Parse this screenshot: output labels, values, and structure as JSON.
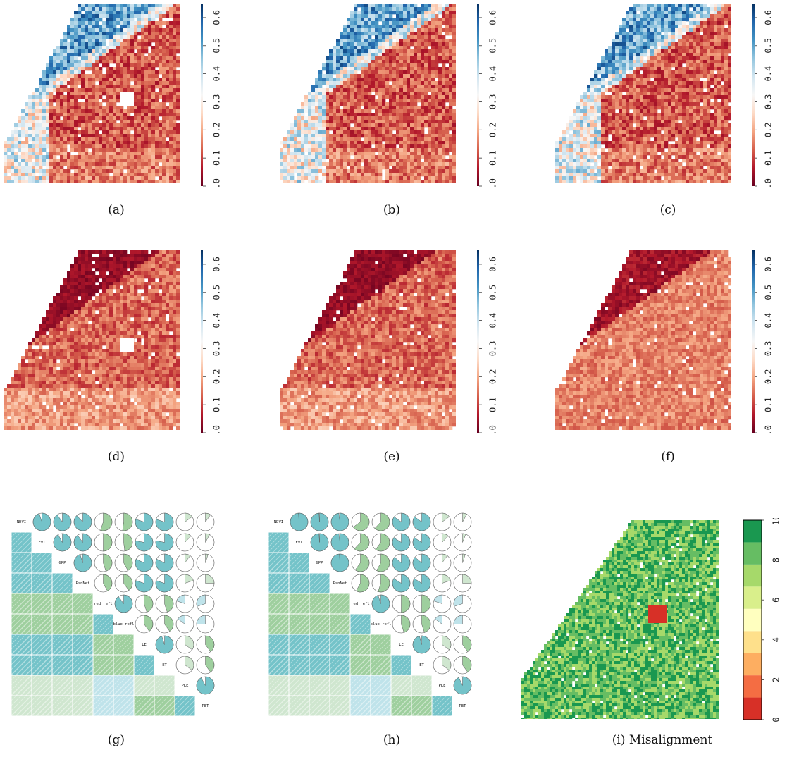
{
  "figure": {
    "captions": [
      "(a)",
      "(b)",
      "(c)",
      "(d)",
      "(e)",
      "(f)",
      "(g)",
      "(h)",
      "(i)  Misalignment"
    ]
  },
  "chart_data": [
    {
      "id": "a",
      "type": "heatmap",
      "colorbar": {
        "ticks": [
          "0.0",
          "0.1",
          "0.2",
          "0.3",
          "0.4",
          "0.5",
          "0.6"
        ],
        "range": [
          0,
          0.65
        ]
      },
      "theme": "bluered",
      "hole": true
    },
    {
      "id": "b",
      "type": "heatmap",
      "colorbar": {
        "ticks": [
          "0.0",
          "0.1",
          "0.2",
          "0.3",
          "0.4",
          "0.5",
          "0.6"
        ],
        "range": [
          0,
          0.65
        ]
      },
      "theme": "bluered",
      "hole": false
    },
    {
      "id": "c",
      "type": "heatmap",
      "colorbar": {
        "ticks": [
          "0.0",
          "0.1",
          "0.2",
          "0.3",
          "0.4",
          "0.5",
          "0.6"
        ],
        "range": [
          0,
          0.65
        ]
      },
      "theme": "bluered",
      "hole": false
    },
    {
      "id": "d",
      "type": "heatmap",
      "colorbar": {
        "ticks": [
          "0.0",
          "0.1",
          "0.2",
          "0.3",
          "0.4",
          "0.5",
          "0.6"
        ],
        "range": [
          0,
          0.65
        ]
      },
      "theme": "red",
      "hole": true
    },
    {
      "id": "e",
      "type": "heatmap",
      "colorbar": {
        "ticks": [
          "0.0",
          "0.1",
          "0.2",
          "0.3",
          "0.4",
          "0.5",
          "0.6"
        ],
        "range": [
          0,
          0.65
        ]
      },
      "theme": "red",
      "hole": false
    },
    {
      "id": "f",
      "type": "heatmap",
      "colorbar": {
        "ticks": [
          "0.0",
          "0.1",
          "0.2",
          "0.3",
          "0.4",
          "0.5",
          "0.6"
        ],
        "range": [
          0,
          0.65
        ]
      },
      "theme": "salmon",
      "hole": false
    },
    {
      "id": "g",
      "type": "table",
      "variables": [
        "NDVI",
        "EVI",
        "GPP",
        "PsnNet",
        "red refl",
        "blue refl",
        "LE",
        "ET",
        "PLE",
        "PET"
      ],
      "correlations": [
        [
          1.0,
          0.95,
          0.9,
          0.88,
          0.55,
          0.52,
          0.8,
          0.8,
          0.15,
          0.1
        ],
        [
          0.95,
          1.0,
          0.92,
          0.9,
          0.5,
          0.48,
          0.78,
          0.78,
          0.12,
          0.08
        ],
        [
          0.9,
          0.92,
          1.0,
          0.95,
          0.45,
          0.42,
          0.82,
          0.82,
          0.1,
          0.05
        ],
        [
          0.88,
          0.9,
          0.95,
          1.0,
          0.42,
          0.4,
          0.8,
          0.8,
          0.2,
          0.25
        ],
        [
          0.55,
          0.5,
          0.45,
          0.42,
          1.0,
          0.9,
          0.45,
          0.45,
          -0.2,
          -0.3
        ],
        [
          0.52,
          0.48,
          0.42,
          0.4,
          0.9,
          1.0,
          0.4,
          0.4,
          -0.15,
          -0.25
        ],
        [
          0.8,
          0.78,
          0.82,
          0.8,
          0.45,
          0.4,
          1.0,
          0.95,
          0.35,
          0.4
        ],
        [
          0.8,
          0.78,
          0.82,
          0.8,
          0.45,
          0.4,
          0.95,
          1.0,
          0.35,
          0.4
        ],
        [
          0.15,
          0.12,
          0.1,
          0.2,
          -0.2,
          -0.15,
          0.35,
          0.35,
          1.0,
          0.92
        ],
        [
          0.1,
          0.08,
          0.05,
          0.25,
          -0.3,
          -0.25,
          0.4,
          0.4,
          0.92,
          1.0
        ]
      ]
    },
    {
      "id": "h",
      "type": "table",
      "variables": [
        "NDVI",
        "EVI",
        "GPP",
        "PsnNet",
        "red refl",
        "blue refl",
        "LE",
        "ET",
        "PLE",
        "PET"
      ],
      "correlations": [
        [
          1.0,
          0.99,
          0.99,
          0.98,
          0.65,
          0.62,
          0.85,
          0.85,
          0.15,
          0.08
        ],
        [
          0.99,
          1.0,
          0.99,
          0.98,
          0.62,
          0.6,
          0.84,
          0.84,
          0.12,
          0.06
        ],
        [
          0.99,
          0.99,
          1.0,
          0.99,
          0.6,
          0.58,
          0.86,
          0.86,
          0.1,
          0.05
        ],
        [
          0.98,
          0.98,
          0.99,
          1.0,
          0.58,
          0.55,
          0.84,
          0.84,
          0.2,
          0.25
        ],
        [
          0.65,
          0.62,
          0.6,
          0.58,
          1.0,
          0.95,
          0.5,
          0.5,
          -0.2,
          -0.3
        ],
        [
          0.62,
          0.6,
          0.58,
          0.55,
          0.95,
          1.0,
          0.45,
          0.45,
          -0.15,
          -0.25
        ],
        [
          0.85,
          0.84,
          0.86,
          0.84,
          0.5,
          0.45,
          1.0,
          0.96,
          0.35,
          0.4
        ],
        [
          0.85,
          0.84,
          0.86,
          0.84,
          0.5,
          0.45,
          0.96,
          1.0,
          0.35,
          0.4
        ],
        [
          0.15,
          0.12,
          0.1,
          0.2,
          -0.2,
          -0.15,
          0.35,
          0.35,
          1.0,
          0.93
        ],
        [
          0.08,
          0.06,
          0.05,
          0.25,
          -0.3,
          -0.25,
          0.4,
          0.4,
          0.93,
          1.0
        ]
      ]
    },
    {
      "id": "i",
      "type": "heatmap",
      "colorbar": {
        "ticks": [
          "0",
          "2",
          "4",
          "6",
          "8",
          "10"
        ],
        "range": [
          0,
          10
        ],
        "colors": [
          "#d73027",
          "#f46d43",
          "#fdae61",
          "#fee08b",
          "#ffffbf",
          "#d9ef8b",
          "#a6d96a",
          "#66bd63",
          "#1a9850"
        ]
      }
    }
  ],
  "colors": {
    "bluered": [
      "#67001f",
      "#b2182b",
      "#d6604d",
      "#f4a582",
      "#fddbc7",
      "#f7f7f7",
      "#d1e5f0",
      "#92c5de",
      "#4393c3",
      "#2166ac",
      "#053061"
    ],
    "pos_corr": [
      "#cfe6cf",
      "#9ecf9e",
      "#74c3c9"
    ],
    "neg_corr": "#bfe3ea"
  }
}
